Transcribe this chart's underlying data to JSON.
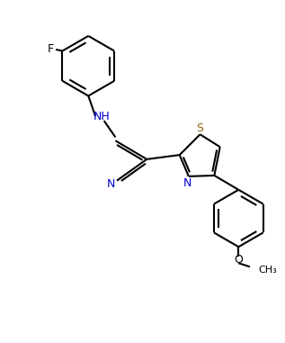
{
  "background_color": "#ffffff",
  "line_color": "#000000",
  "atom_color": "#000000",
  "N_color": "#0000cd",
  "S_color": "#ccaa00",
  "line_width": 1.5,
  "font_size": 9,
  "figsize": [
    3.17,
    3.81
  ],
  "dpi": 100,
  "xlim": [
    0,
    10
  ],
  "ylim": [
    0,
    12
  ]
}
